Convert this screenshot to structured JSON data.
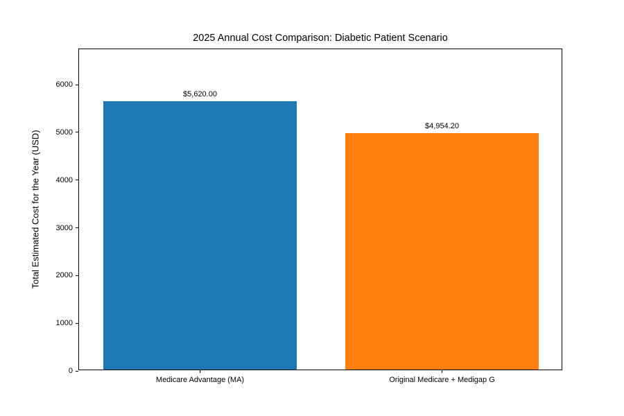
{
  "chart_data": {
    "type": "bar",
    "title": "2025 Annual Cost Comparison: Diabetic Patient Scenario",
    "xlabel": "",
    "ylabel": "Total Estimated Cost for the Year (USD)",
    "categories": [
      "Medicare Advantage (MA)",
      "Original Medicare + Medigap G"
    ],
    "values": [
      5620.0,
      4954.2
    ],
    "bar_labels": [
      "$5,620.00",
      "$4,954.20"
    ],
    "bar_colors": [
      "#1f77b4",
      "#ff7f0e"
    ],
    "yticks": [
      0,
      1000,
      2000,
      3000,
      4000,
      5000,
      6000
    ],
    "ylim": [
      0,
      6744
    ],
    "bar_width_fraction": 0.8,
    "grid": false,
    "legend_position": "none"
  }
}
